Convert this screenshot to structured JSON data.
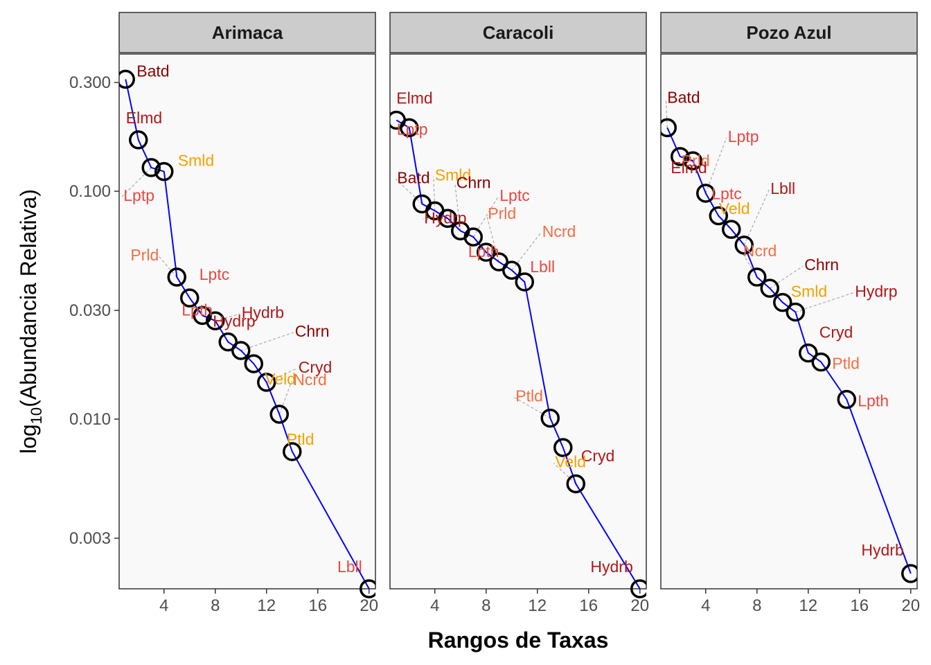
{
  "chart_data": {
    "type": "line",
    "xlabel": "Rangos de Taxas",
    "ylabel": "log10(Abundancia Relativa)",
    "ylabel_parts": [
      "log",
      "10",
      "(Abundancia Relativa)"
    ],
    "yscale": "log10",
    "xlim": [
      0.5,
      20.5
    ],
    "ylim": [
      0.0018,
      0.4
    ],
    "xticks": [
      4,
      8,
      12,
      16,
      20
    ],
    "yticks": [
      0.003,
      0.01,
      0.03,
      0.1,
      0.3
    ],
    "ytick_labels": [
      "0.003",
      "0.010",
      "0.030",
      "0.100",
      "0.300"
    ],
    "grid": false,
    "line_color": "#0000ff",
    "panel_background": "#f9f9f9",
    "strip_background": "#cccccc",
    "label_colors": {
      "dark_red": "#8b0000",
      "red": "#e8483f",
      "orange_red": "#f46d43",
      "orange": "#f7a000"
    },
    "panels": [
      {
        "name": "Arimaca",
        "points": [
          {
            "rank": 1,
            "value": 0.31,
            "label": "Batd",
            "color": "#8b0000"
          },
          {
            "rank": 2,
            "value": 0.168,
            "label": "Elmd",
            "color": "#b01818"
          },
          {
            "rank": 3,
            "value": 0.127,
            "label": "Lptp",
            "color": "#e8483f"
          },
          {
            "rank": 4,
            "value": 0.122,
            "label": "Smld",
            "color": "#f7a000"
          },
          {
            "rank": 5,
            "value": 0.042,
            "label": "Prld",
            "color": "#f46d43"
          },
          {
            "rank": 6,
            "value": 0.034,
            "label": "Lptc",
            "color": "#e8483f"
          },
          {
            "rank": 7,
            "value": 0.0285,
            "label": "Lpth",
            "color": "#e8483f"
          },
          {
            "rank": 8,
            "value": 0.027,
            "label": "Hydrb",
            "color": "#b01818"
          },
          {
            "rank": 9,
            "value": 0.0218,
            "label": "Hydrp",
            "color": "#b01818"
          },
          {
            "rank": 10,
            "value": 0.02,
            "label": "Chrn",
            "color": "#8b0000"
          },
          {
            "rank": 11,
            "value": 0.0175,
            "label": "Veld",
            "color": "#f7a000"
          },
          {
            "rank": 12,
            "value": 0.0145,
            "label": "Cryd",
            "color": "#b01818"
          },
          {
            "rank": 13,
            "value": 0.0105,
            "label": "Ncrd",
            "color": "#f46d43"
          },
          {
            "rank": 14,
            "value": 0.0072,
            "label": "Ptld",
            "color": "#f7a000"
          },
          {
            "rank": 20,
            "value": 0.0018,
            "label": "Lbll",
            "color": "#e8483f"
          }
        ]
      },
      {
        "name": "Caracoli",
        "points": [
          {
            "rank": 1,
            "value": 0.205,
            "label": "Elmd",
            "color": "#b01818"
          },
          {
            "rank": 2,
            "value": 0.19,
            "label": "Lptp",
            "color": "#e8483f"
          },
          {
            "rank": 3,
            "value": 0.088,
            "label": "Batd",
            "color": "#8b0000"
          },
          {
            "rank": 4,
            "value": 0.082,
            "label": "Smld",
            "color": "#f7a000"
          },
          {
            "rank": 5,
            "value": 0.076,
            "label": "Hydrp",
            "color": "#b01818"
          },
          {
            "rank": 6,
            "value": 0.067,
            "label": "Chrn",
            "color": "#8b0000"
          },
          {
            "rank": 7,
            "value": 0.063,
            "label": "Lptc",
            "color": "#e8483f"
          },
          {
            "rank": 8,
            "value": 0.054,
            "label": "Lpth",
            "color": "#e8483f"
          },
          {
            "rank": 9,
            "value": 0.049,
            "label": "Prld",
            "color": "#f46d43"
          },
          {
            "rank": 10,
            "value": 0.045,
            "label": "Ncrd",
            "color": "#f46d43"
          },
          {
            "rank": 11,
            "value": 0.04,
            "label": "Lbll",
            "color": "#e8483f"
          },
          {
            "rank": 13,
            "value": 0.0101,
            "label": "Ptld",
            "color": "#f46d43"
          },
          {
            "rank": 14,
            "value": 0.0075,
            "label": "Cryd",
            "color": "#b01818"
          },
          {
            "rank": 15,
            "value": 0.0052,
            "label": "Veld",
            "color": "#f7a000"
          },
          {
            "rank": 20,
            "value": 0.0018,
            "label": "Hydrb",
            "color": "#b01818"
          }
        ]
      },
      {
        "name": "Pozo Azul",
        "points": [
          {
            "rank": 1,
            "value": 0.19,
            "label": "Batd",
            "color": "#8b0000"
          },
          {
            "rank": 2,
            "value": 0.142,
            "label": "Prld",
            "color": "#f46d43"
          },
          {
            "rank": 3,
            "value": 0.136,
            "label": "Elmd",
            "color": "#b01818"
          },
          {
            "rank": 4,
            "value": 0.098,
            "label": "Lptp",
            "color": "#e8483f"
          },
          {
            "rank": 5,
            "value": 0.078,
            "label": "Lptc",
            "color": "#e8483f"
          },
          {
            "rank": 6,
            "value": 0.068,
            "label": "Veld",
            "color": "#f7a000"
          },
          {
            "rank": 7,
            "value": 0.058,
            "label": "Lbll",
            "color": "#b01818"
          },
          {
            "rank": 8,
            "value": 0.042,
            "label": "Ncrd",
            "color": "#f46d43"
          },
          {
            "rank": 9,
            "value": 0.0375,
            "label": "Chrn",
            "color": "#8b0000"
          },
          {
            "rank": 10,
            "value": 0.0325,
            "label": "Smld",
            "color": "#f7a000"
          },
          {
            "rank": 11,
            "value": 0.0295,
            "label": "Hydrp",
            "color": "#b01818"
          },
          {
            "rank": 12,
            "value": 0.0195,
            "label": "Cryd",
            "color": "#b01818"
          },
          {
            "rank": 13,
            "value": 0.0178,
            "label": "Ptld",
            "color": "#f46d43"
          },
          {
            "rank": 15,
            "value": 0.0122,
            "label": "Lpth",
            "color": "#e8483f"
          },
          {
            "rank": 20,
            "value": 0.0021,
            "label": "Hydrb",
            "color": "#b01818"
          }
        ]
      }
    ]
  }
}
